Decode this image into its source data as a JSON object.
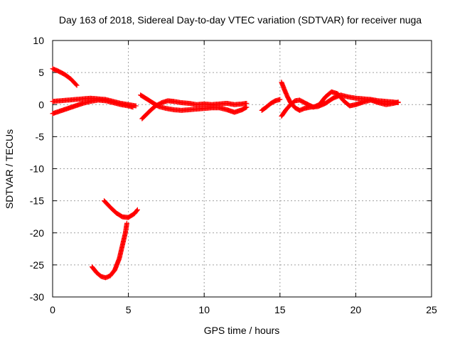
{
  "chart_data": {
    "type": "scatter",
    "title": "Day 163 of 2018, Sidereal Day-to-day VTEC variation (SDTVAR) for receiver nuga",
    "xlabel": "GPS time / hours",
    "ylabel": "SDTVAR / TECUs",
    "xlim": [
      0,
      25
    ],
    "ylim": [
      -30,
      10
    ],
    "xticks": [
      0,
      5,
      10,
      15,
      20,
      25
    ],
    "yticks": [
      -30,
      -25,
      -20,
      -15,
      -10,
      -5,
      0,
      5,
      10
    ],
    "grid": true,
    "marker_color": "#ff0000",
    "marker": "plus",
    "series": [
      {
        "segments": [
          [
            [
              0.0,
              5.6
            ],
            [
              0.4,
              5.2
            ],
            [
              0.8,
              4.7
            ],
            [
              1.2,
              4.0
            ],
            [
              1.6,
              3.0
            ]
          ],
          [
            [
              0.0,
              -1.4
            ],
            [
              0.5,
              -1.0
            ],
            [
              1.0,
              -0.6
            ],
            [
              1.5,
              -0.2
            ],
            [
              2.0,
              0.2
            ],
            [
              2.5,
              0.5
            ],
            [
              3.0,
              0.7
            ],
            [
              3.5,
              0.6
            ],
            [
              4.0,
              0.3
            ],
            [
              4.5,
              0.0
            ],
            [
              5.0,
              -0.2
            ],
            [
              5.3,
              -0.4
            ]
          ],
          [
            [
              0.0,
              0.5
            ],
            [
              0.5,
              0.6
            ],
            [
              1.0,
              0.7
            ],
            [
              1.5,
              0.8
            ],
            [
              2.0,
              0.9
            ],
            [
              2.5,
              1.0
            ],
            [
              3.0,
              0.9
            ],
            [
              3.5,
              0.8
            ],
            [
              4.0,
              0.5
            ],
            [
              4.5,
              0.2
            ],
            [
              5.0,
              0.0
            ],
            [
              5.5,
              -0.2
            ]
          ],
          [
            [
              5.9,
              -2.2
            ],
            [
              6.2,
              -1.5
            ],
            [
              6.5,
              -0.8
            ],
            [
              6.8,
              -0.2
            ],
            [
              7.2,
              0.3
            ],
            [
              7.6,
              0.6
            ],
            [
              8.0,
              0.5
            ],
            [
              8.5,
              0.3
            ],
            [
              9.0,
              0.2
            ],
            [
              9.5,
              0.0
            ],
            [
              10.0,
              0.1
            ],
            [
              10.5,
              0.0
            ],
            [
              11.0,
              0.1
            ],
            [
              11.5,
              0.2
            ],
            [
              12.0,
              0.0
            ],
            [
              12.5,
              0.1
            ],
            [
              12.8,
              0.2
            ]
          ],
          [
            [
              5.8,
              1.5
            ],
            [
              6.2,
              0.9
            ],
            [
              6.6,
              0.3
            ],
            [
              7.0,
              -0.3
            ],
            [
              7.5,
              -0.6
            ],
            [
              8.0,
              -0.8
            ],
            [
              8.5,
              -0.9
            ],
            [
              9.0,
              -0.8
            ],
            [
              9.5,
              -0.7
            ],
            [
              10.0,
              -0.6
            ],
            [
              10.5,
              -0.5
            ],
            [
              11.0,
              -0.5
            ],
            [
              11.5,
              -0.8
            ],
            [
              12.0,
              -1.2
            ],
            [
              12.5,
              -0.8
            ],
            [
              12.8,
              -0.4
            ]
          ],
          [
            [
              13.8,
              -0.9
            ],
            [
              14.1,
              -0.4
            ],
            [
              14.4,
              0.2
            ],
            [
              14.7,
              0.6
            ],
            [
              15.0,
              0.8
            ]
          ],
          [
            [
              15.1,
              3.5
            ],
            [
              15.3,
              2.3
            ],
            [
              15.5,
              1.2
            ],
            [
              15.7,
              0.3
            ],
            [
              16.0,
              -0.5
            ],
            [
              16.3,
              -0.9
            ],
            [
              16.6,
              -0.6
            ],
            [
              17.0,
              -0.4
            ],
            [
              17.5,
              -0.3
            ],
            [
              18.0,
              0.2
            ],
            [
              18.5,
              1.0
            ],
            [
              19.0,
              1.5
            ],
            [
              19.5,
              1.2
            ],
            [
              20.0,
              1.0
            ],
            [
              20.5,
              0.9
            ],
            [
              21.0,
              0.8
            ],
            [
              21.5,
              0.6
            ],
            [
              22.0,
              0.5
            ],
            [
              22.5,
              0.4
            ],
            [
              22.8,
              0.3
            ]
          ],
          [
            [
              15.1,
              -1.8
            ],
            [
              15.4,
              -0.8
            ],
            [
              15.7,
              0.0
            ],
            [
              16.0,
              0.6
            ],
            [
              16.3,
              0.7
            ],
            [
              16.7,
              0.2
            ],
            [
              17.2,
              -0.4
            ],
            [
              17.6,
              0.0
            ],
            [
              18.0,
              1.2
            ],
            [
              18.4,
              2.0
            ],
            [
              18.8,
              1.7
            ],
            [
              19.2,
              0.6
            ],
            [
              19.6,
              -0.2
            ],
            [
              20.0,
              0.0
            ],
            [
              20.5,
              0.4
            ],
            [
              21.0,
              0.7
            ],
            [
              21.5,
              0.3
            ],
            [
              22.0,
              0.0
            ],
            [
              22.5,
              0.2
            ],
            [
              22.8,
              0.4
            ]
          ],
          [
            [
              2.6,
              -25.3
            ],
            [
              2.9,
              -26.2
            ],
            [
              3.2,
              -26.8
            ],
            [
              3.5,
              -27.0
            ],
            [
              3.8,
              -26.7
            ],
            [
              4.1,
              -25.8
            ],
            [
              4.4,
              -24.0
            ],
            [
              4.6,
              -22.0
            ],
            [
              4.8,
              -20.0
            ],
            [
              4.9,
              -18.5
            ]
          ],
          [
            [
              3.4,
              -15.0
            ],
            [
              3.8,
              -16.0
            ],
            [
              4.2,
              -16.9
            ],
            [
              4.6,
              -17.5
            ],
            [
              5.0,
              -17.6
            ],
            [
              5.4,
              -17.0
            ],
            [
              5.6,
              -16.4
            ]
          ]
        ]
      }
    ]
  }
}
